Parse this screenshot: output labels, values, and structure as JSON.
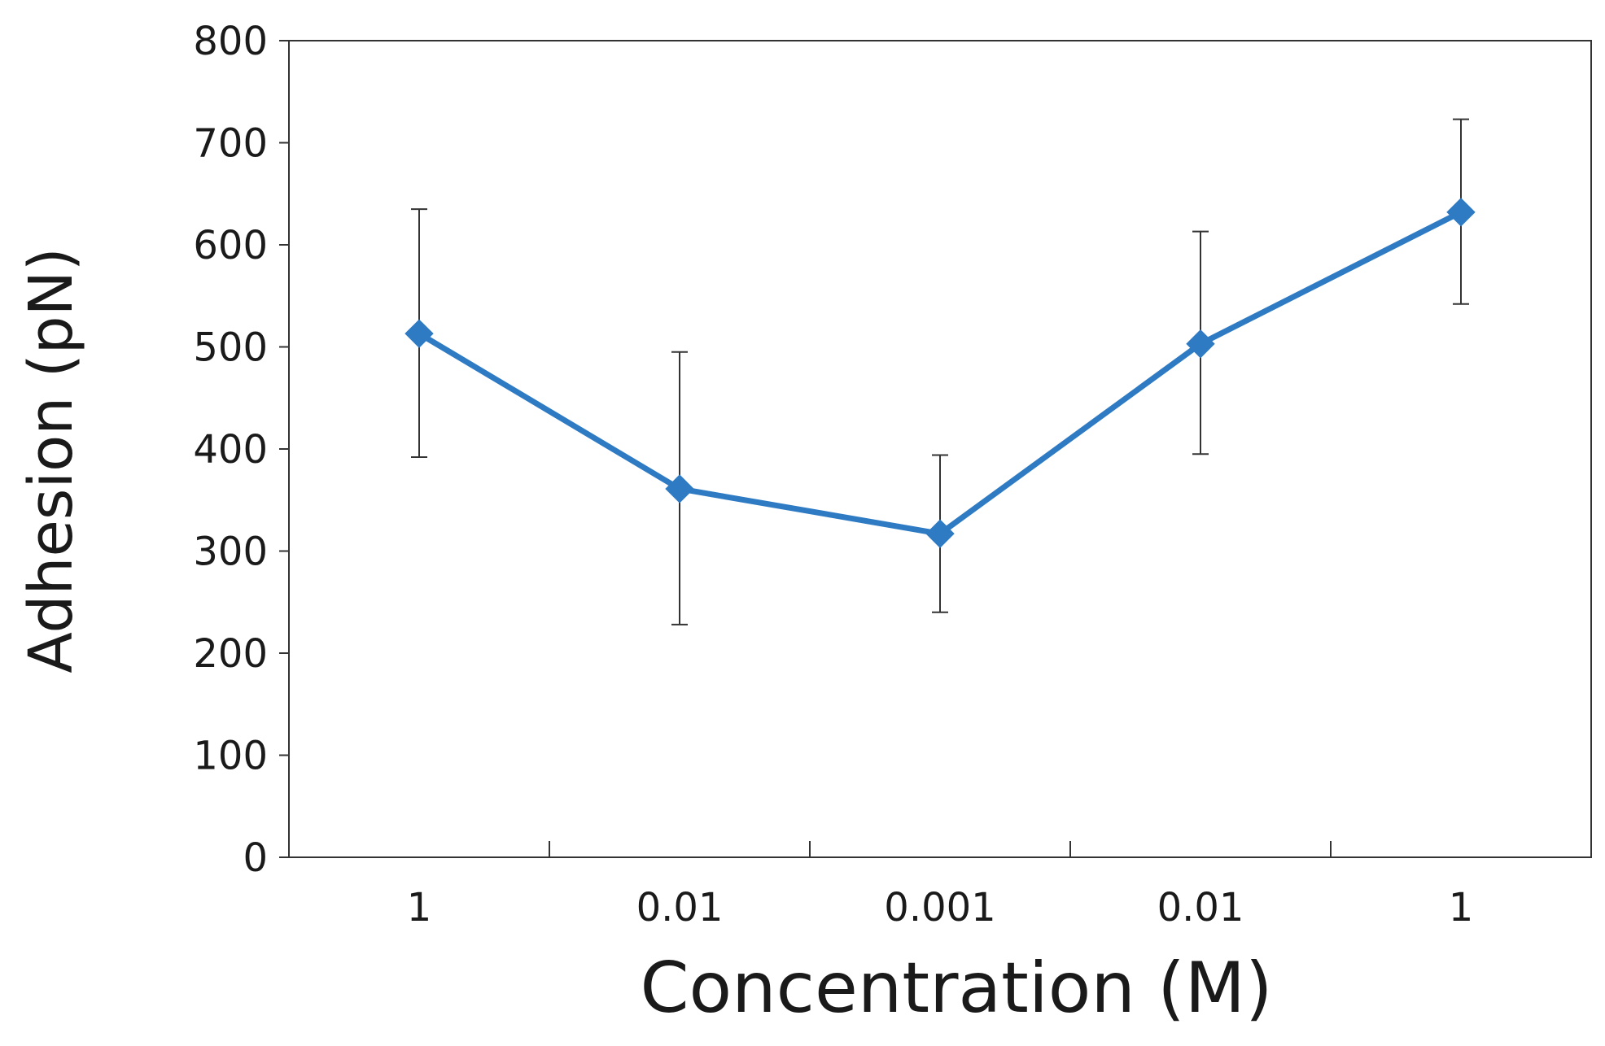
{
  "chart_data": {
    "type": "line",
    "title": "",
    "xlabel": "Concentration (M)",
    "ylabel": "Adhesion (pN)",
    "categories": [
      "1",
      "0.01",
      "0.001",
      "0.01",
      "1"
    ],
    "ylim": [
      0,
      800
    ],
    "yticks": [
      0,
      100,
      200,
      300,
      400,
      500,
      600,
      700,
      800
    ],
    "grid": false,
    "series": [
      {
        "name": "Adhesion",
        "color": "#2e7bc4",
        "marker": "diamond",
        "values": [
          513,
          361,
          317,
          503,
          632
        ],
        "error_upper": [
          635,
          495,
          394,
          613,
          723
        ],
        "error_lower": [
          392,
          228,
          240,
          395,
          542
        ]
      }
    ]
  }
}
